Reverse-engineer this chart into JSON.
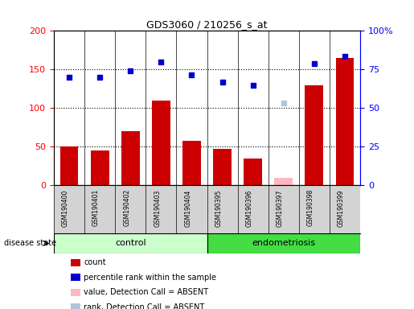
{
  "title": "GDS3060 / 210256_s_at",
  "samples": [
    "GSM190400",
    "GSM190401",
    "GSM190402",
    "GSM190403",
    "GSM190404",
    "GSM190395",
    "GSM190396",
    "GSM190397",
    "GSM190398",
    "GSM190399"
  ],
  "groups": [
    "control",
    "control",
    "control",
    "control",
    "control",
    "endometriosis",
    "endometriosis",
    "endometriosis",
    "endometriosis",
    "endometriosis"
  ],
  "count_values": [
    50,
    45,
    70,
    110,
    58,
    47,
    35,
    null,
    130,
    165
  ],
  "rank_values": [
    140,
    140,
    148,
    160,
    143,
    134,
    130,
    null,
    158,
    167
  ],
  "absent_count_value": 10,
  "absent_count_index": 7,
  "absent_rank_value": 107,
  "absent_rank_index": 7,
  "ylim_left": [
    0,
    200
  ],
  "left_yticks": [
    0,
    50,
    100,
    150,
    200
  ],
  "right_yticks": [
    0,
    50,
    100,
    150,
    200
  ],
  "right_yticklabels": [
    "0",
    "25",
    "50",
    "75",
    "100%"
  ],
  "bar_color": "#CC0000",
  "dot_color": "#0000CC",
  "absent_bar_color": "#FFB6C1",
  "absent_dot_color": "#B0C4DE",
  "control_bg": "#CCFFCC",
  "endometriosis_bg": "#44DD44",
  "gray_bg": "#D3D3D3",
  "dotted_levels": [
    50,
    100,
    150
  ],
  "legend_items": [
    {
      "color": "#CC0000",
      "label": "count"
    },
    {
      "color": "#0000CC",
      "label": "percentile rank within the sample"
    },
    {
      "color": "#FFB6C1",
      "label": "value, Detection Call = ABSENT"
    },
    {
      "color": "#B0C4DE",
      "label": "rank, Detection Call = ABSENT"
    }
  ]
}
